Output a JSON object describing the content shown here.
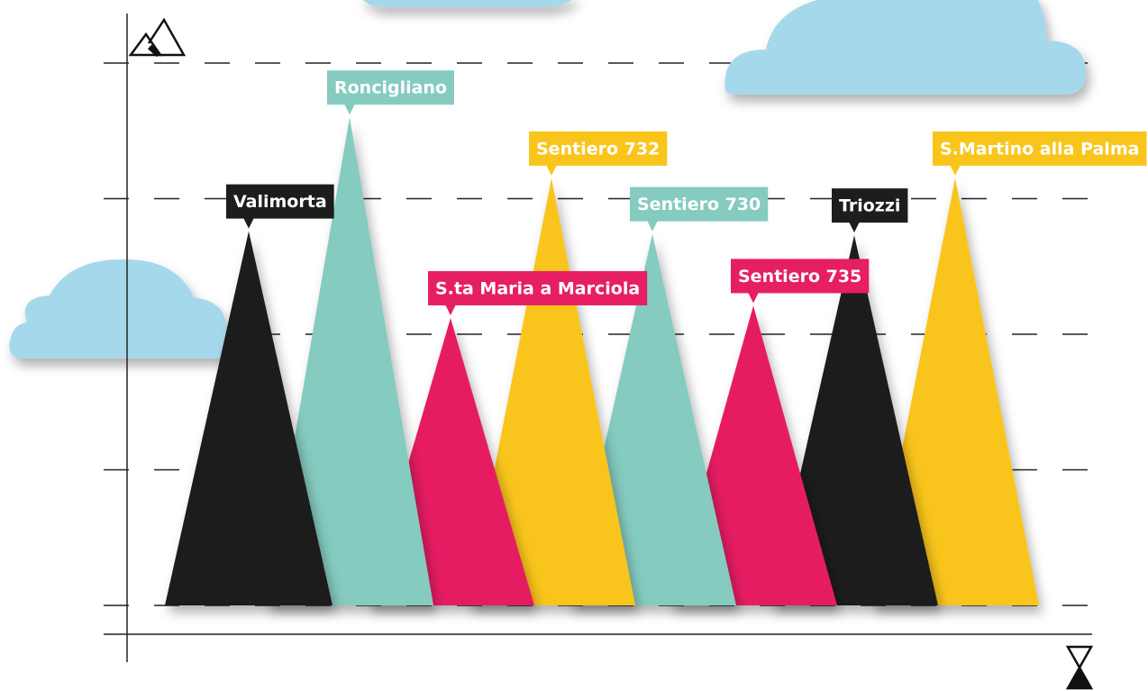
{
  "chart_data": {
    "type": "peak",
    "categories": [
      "Valimorta",
      "Roncigliano",
      "S.ta Maria a Marciola",
      "Sentiero 732",
      "Sentiero 730",
      "Sentiero 735",
      "Triozzi",
      "S.Martino alla Palma"
    ],
    "values": [
      2.76,
      3.6,
      2.12,
      3.15,
      2.74,
      2.21,
      2.73,
      3.15
    ],
    "colors": [
      "#1d1d1b",
      "#85cbbf",
      "#e61e64",
      "#f9c51a",
      "#85cbbf",
      "#e61e64",
      "#1d1d1b",
      "#f9c51a"
    ],
    "ylim": [
      0,
      4
    ],
    "yticks": [
      0,
      1,
      2,
      3,
      4
    ],
    "grid": true
  }
}
